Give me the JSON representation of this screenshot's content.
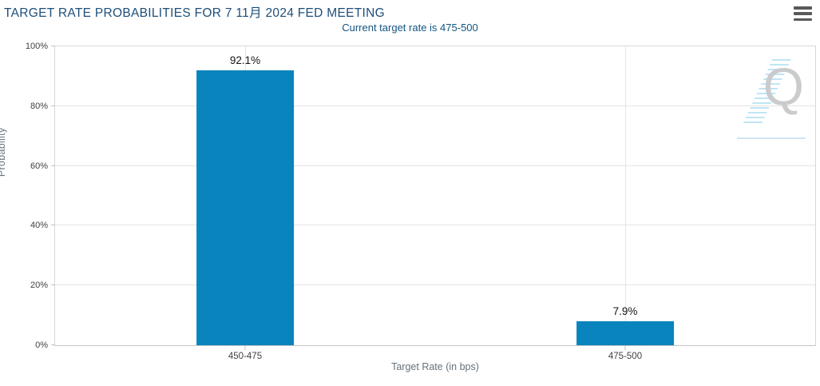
{
  "header": {
    "title": "TARGET RATE PROBABILITIES FOR 7 11月 2024 FED MEETING",
    "subtitle": "Current target rate is 475-500"
  },
  "menu": {
    "icon": "hamburger-menu-icon"
  },
  "watermark": {
    "letter": "Q"
  },
  "colors": {
    "bar": "#0a84bd",
    "title": "#1d4e79",
    "subtitle": "#135480",
    "grid": "#e4e4e4",
    "plot_border": "#d8d8d8",
    "tick_label": "#3f3f3f",
    "axis_title": "#67717a",
    "value_label": "#141414",
    "watermark_q": "#c9cbcd",
    "watermark_stripes": "#b8e2f3",
    "menu_icon": "#58595b"
  },
  "chart_data": {
    "type": "bar",
    "title": "TARGET RATE PROBABILITIES FOR 7 11月 2024 FED MEETING",
    "subtitle": "Current target rate is 475-500",
    "categories": [
      "450-475",
      "475-500"
    ],
    "values": [
      92.1,
      7.9
    ],
    "value_labels": [
      "92.1%",
      "7.9%"
    ],
    "xlabel": "Target Rate (in bps)",
    "ylabel": "Probability",
    "ylim": [
      0,
      100
    ],
    "ytick_step": 20,
    "yticks": [
      "0%",
      "20%",
      "40%",
      "60%",
      "80%",
      "100%"
    ],
    "grid": true,
    "legend": "none",
    "bar_color": "#0a84bd"
  }
}
